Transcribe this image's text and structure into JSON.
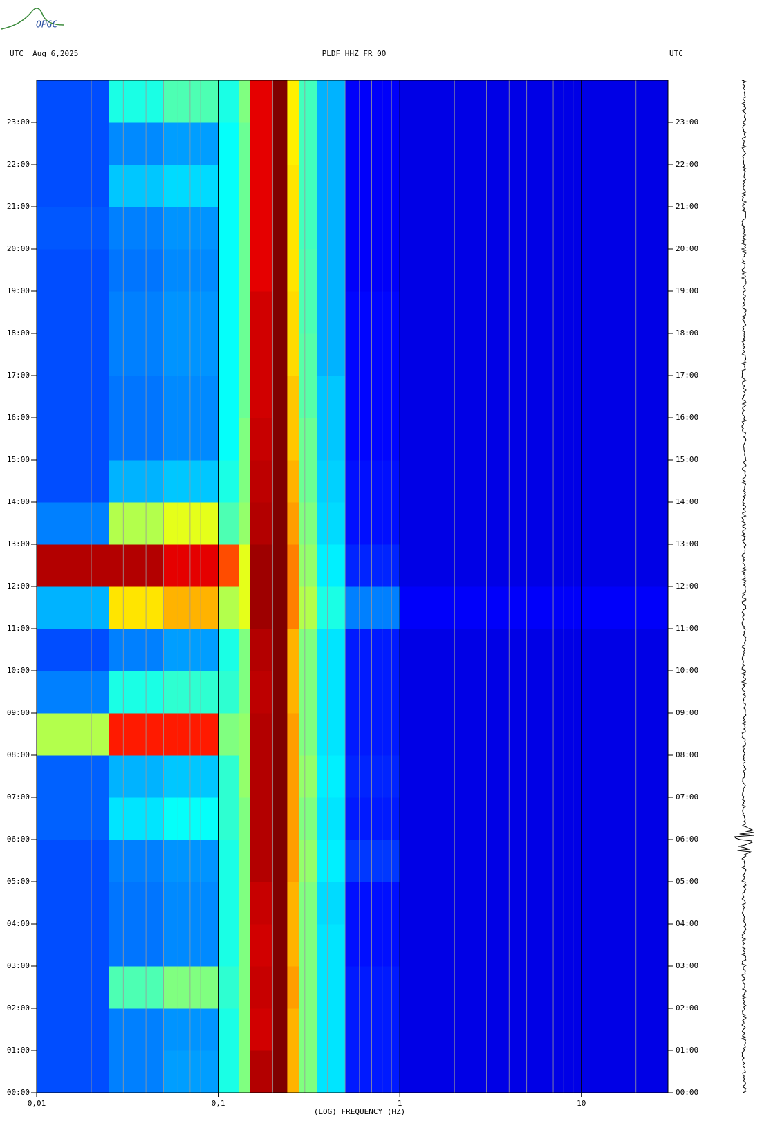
{
  "chart_data": {
    "type": "spectrogram",
    "logo": "OPGC",
    "title_left": "UTC  Aug 6,2025",
    "title": "PLDF HHZ FR 00",
    "title_right": "UTC",
    "xlabel": "(LOG) FREQUENCY (HZ)",
    "xlog": true,
    "xlim": [
      0.01,
      30
    ],
    "xticks": [
      {
        "value": 0.01,
        "label": "0,01"
      },
      {
        "value": 0.1,
        "label": "0,1"
      },
      1,
      10
    ],
    "xgrid": [
      0.02,
      0.03,
      0.04,
      0.05,
      0.06,
      0.07,
      0.08,
      0.09,
      0.2,
      0.3,
      0.4,
      0.5,
      0.6,
      0.7,
      0.8,
      0.9,
      2,
      3,
      4,
      5,
      6,
      7,
      8,
      9,
      20
    ],
    "ylim": [
      0,
      24
    ],
    "yticks": [
      {
        "value": 0,
        "label": "00:00"
      },
      {
        "value": 1,
        "label": "01:00"
      },
      {
        "value": 2,
        "label": "02:00"
      },
      {
        "value": 3,
        "label": "03:00"
      },
      {
        "value": 4,
        "label": "04:00"
      },
      {
        "value": 5,
        "label": "05:00"
      },
      {
        "value": 6,
        "label": "06:00"
      },
      {
        "value": 7,
        "label": "07:00"
      },
      {
        "value": 8,
        "label": "08:00"
      },
      {
        "value": 9,
        "label": "09:00"
      },
      {
        "value": 10,
        "label": "10:00"
      },
      {
        "value": 11,
        "label": "11:00"
      },
      {
        "value": 12,
        "label": "12:00"
      },
      {
        "value": 13,
        "label": "13:00"
      },
      {
        "value": 14,
        "label": "14:00"
      },
      {
        "value": 15,
        "label": "15:00"
      },
      {
        "value": 16,
        "label": "16:00"
      },
      {
        "value": 17,
        "label": "17:00"
      },
      {
        "value": 18,
        "label": "18:00"
      },
      {
        "value": 19,
        "label": "19:00"
      },
      {
        "value": 20,
        "label": "20:00"
      },
      {
        "value": 21,
        "label": "21:00"
      },
      {
        "value": 22,
        "label": "22:00"
      },
      {
        "value": 23,
        "label": "23:00"
      }
    ],
    "x_edges": [
      0.01,
      0.025,
      0.05,
      0.1,
      0.13,
      0.15,
      0.2,
      0.24,
      0.28,
      0.35,
      0.5,
      1,
      30
    ],
    "z": [
      [
        0.2,
        0.25,
        0.28,
        0.4,
        0.5,
        0.95,
        1.0,
        0.7,
        0.5,
        0.35,
        0.15,
        0.1
      ],
      [
        0.2,
        0.25,
        0.27,
        0.4,
        0.5,
        0.92,
        1.0,
        0.7,
        0.5,
        0.35,
        0.15,
        0.1
      ],
      [
        0.2,
        0.45,
        0.5,
        0.42,
        0.5,
        0.93,
        1.0,
        0.72,
        0.5,
        0.35,
        0.15,
        0.1
      ],
      [
        0.2,
        0.24,
        0.26,
        0.4,
        0.5,
        0.92,
        1.0,
        0.7,
        0.5,
        0.35,
        0.14,
        0.1
      ],
      [
        0.2,
        0.24,
        0.26,
        0.4,
        0.5,
        0.93,
        1.0,
        0.7,
        0.5,
        0.34,
        0.14,
        0.1
      ],
      [
        0.2,
        0.25,
        0.27,
        0.4,
        0.5,
        0.95,
        1.0,
        0.72,
        0.52,
        0.36,
        0.18,
        0.1
      ],
      [
        0.22,
        0.35,
        0.38,
        0.42,
        0.5,
        0.95,
        1.0,
        0.72,
        0.5,
        0.35,
        0.15,
        0.1
      ],
      [
        0.22,
        0.3,
        0.32,
        0.42,
        0.52,
        0.95,
        1.0,
        0.72,
        0.52,
        0.36,
        0.16,
        0.1
      ],
      [
        0.55,
        0.85,
        0.85,
        0.5,
        0.52,
        0.95,
        1.0,
        0.72,
        0.5,
        0.35,
        0.15,
        0.1
      ],
      [
        0.25,
        0.4,
        0.42,
        0.42,
        0.5,
        0.94,
        1.0,
        0.7,
        0.5,
        0.35,
        0.15,
        0.1
      ],
      [
        0.2,
        0.25,
        0.28,
        0.4,
        0.5,
        0.95,
        1.0,
        0.7,
        0.5,
        0.35,
        0.15,
        0.1
      ],
      [
        0.3,
        0.65,
        0.7,
        0.55,
        0.6,
        0.97,
        1.0,
        0.75,
        0.55,
        0.4,
        0.25,
        0.12
      ],
      [
        0.95,
        0.95,
        0.9,
        0.8,
        0.6,
        0.97,
        1.0,
        0.75,
        0.52,
        0.36,
        0.16,
        0.1
      ],
      [
        0.25,
        0.55,
        0.6,
        0.45,
        0.52,
        0.95,
        1.0,
        0.72,
        0.5,
        0.34,
        0.14,
        0.1
      ],
      [
        0.2,
        0.3,
        0.32,
        0.4,
        0.5,
        0.94,
        1.0,
        0.7,
        0.48,
        0.33,
        0.14,
        0.1
      ],
      [
        0.2,
        0.24,
        0.26,
        0.38,
        0.5,
        0.93,
        1.0,
        0.68,
        0.48,
        0.32,
        0.13,
        0.1
      ],
      [
        0.2,
        0.24,
        0.26,
        0.38,
        0.48,
        0.92,
        1.0,
        0.68,
        0.46,
        0.32,
        0.13,
        0.1
      ],
      [
        0.2,
        0.25,
        0.27,
        0.38,
        0.48,
        0.92,
        1.0,
        0.66,
        0.46,
        0.3,
        0.13,
        0.1
      ],
      [
        0.2,
        0.25,
        0.27,
        0.38,
        0.48,
        0.92,
        1.0,
        0.66,
        0.45,
        0.3,
        0.13,
        0.1
      ],
      [
        0.2,
        0.24,
        0.26,
        0.38,
        0.48,
        0.9,
        1.0,
        0.65,
        0.45,
        0.3,
        0.12,
        0.1
      ],
      [
        0.21,
        0.25,
        0.27,
        0.38,
        0.48,
        0.9,
        1.0,
        0.65,
        0.44,
        0.3,
        0.12,
        0.1
      ],
      [
        0.2,
        0.32,
        0.34,
        0.38,
        0.48,
        0.9,
        1.0,
        0.65,
        0.44,
        0.3,
        0.12,
        0.1
      ],
      [
        0.2,
        0.26,
        0.28,
        0.38,
        0.48,
        0.9,
        1.0,
        0.64,
        0.44,
        0.3,
        0.12,
        0.1
      ],
      [
        0.2,
        0.4,
        0.45,
        0.4,
        0.5,
        0.9,
        1.0,
        0.64,
        0.44,
        0.3,
        0.12,
        0.1
      ]
    ]
  }
}
